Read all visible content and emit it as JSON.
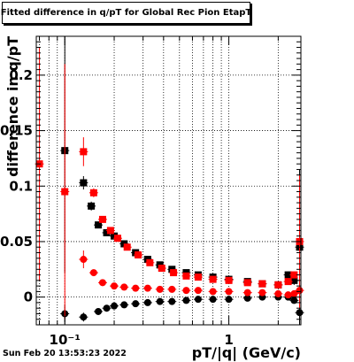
{
  "title": "Fitted difference in q/pT for Global Rec Pion EtapT",
  "footer": {
    "date": "Sun Feb 20 13:53:23 2022"
  },
  "chart_data": {
    "type": "scatter",
    "xlabel": "pT/|q| (GeV/c)",
    "ylabel": "difference in q/pT",
    "x_scale": "log",
    "xlim": [
      0.067,
      2.75
    ],
    "ylim": [
      -0.025,
      0.235
    ],
    "grid": true,
    "x_tick_labels": [
      {
        "value": 0.1,
        "label": "10⁻¹"
      },
      {
        "value": 1,
        "label": "1"
      }
    ],
    "y_tick_labels": [
      {
        "value": 0,
        "label": "0"
      },
      {
        "value": 0.05,
        "label": "0.05"
      },
      {
        "value": 0.1,
        "label": "0.1"
      },
      {
        "value": 0.15,
        "label": "0.15"
      },
      {
        "value": 0.2,
        "label": "0.2"
      }
    ],
    "series": [
      {
        "color": "#000000",
        "marker": "square",
        "x": [
          0.1,
          0.13,
          0.145,
          0.16,
          0.18,
          0.2,
          0.23,
          0.27,
          0.32,
          0.38,
          0.45,
          0.55,
          0.65,
          0.8,
          1.0,
          1.3,
          1.6,
          2.0,
          2.3,
          2.5,
          2.7
        ],
        "y": [
          0.132,
          0.103,
          0.082,
          0.065,
          0.058,
          0.055,
          0.048,
          0.04,
          0.034,
          0.029,
          0.025,
          0.022,
          0.02,
          0.018,
          0.016,
          0.014,
          0.012,
          0.011,
          0.02,
          0.015,
          0.045
        ],
        "yerr": [
          0.11,
          0.006,
          0.004,
          0.003,
          0.002,
          0.002,
          0.002,
          0.001,
          0.001,
          0.001,
          0.001,
          0.001,
          0.001,
          0.001,
          0.001,
          0.001,
          0.001,
          0.002,
          0.003,
          0.004,
          0.07
        ]
      },
      {
        "color": "#000000",
        "marker": "circle",
        "x": [
          0.1,
          0.13,
          0.16,
          0.18,
          0.2,
          0.23,
          0.27,
          0.32,
          0.38,
          0.45,
          0.55,
          0.65,
          0.8,
          1.0,
          1.3,
          1.6,
          2.0,
          2.3,
          2.5,
          2.7
        ],
        "y": [
          -0.015,
          -0.018,
          -0.013,
          -0.01,
          -0.008,
          -0.007,
          -0.006,
          -0.005,
          -0.004,
          -0.004,
          -0.003,
          -0.002,
          -0.002,
          -0.002,
          -0.001,
          0.0,
          0.0,
          0.0,
          -0.003,
          -0.014
        ],
        "yerr": [
          0.008,
          0.004,
          0.003,
          0.002,
          0.002,
          0.001,
          0.001,
          0.001,
          0.001,
          0.001,
          0.001,
          0.001,
          0.001,
          0.001,
          0.001,
          0.001,
          0.001,
          0.001,
          0.002,
          0.02
        ]
      },
      {
        "color": "#ff0000",
        "marker": "square",
        "x": [
          0.07,
          0.1,
          0.13,
          0.15,
          0.17,
          0.19,
          0.21,
          0.24,
          0.28,
          0.33,
          0.39,
          0.46,
          0.55,
          0.65,
          0.8,
          1.0,
          1.3,
          1.6,
          2.0,
          2.3,
          2.5,
          2.7
        ],
        "y": [
          0.12,
          0.095,
          0.131,
          0.094,
          0.07,
          0.06,
          0.053,
          0.045,
          0.038,
          0.031,
          0.026,
          0.022,
          0.019,
          0.018,
          0.016,
          0.015,
          0.013,
          0.012,
          0.011,
          0.014,
          0.02,
          0.05
        ],
        "yerr": [
          0.105,
          0.115,
          0.013,
          0.004,
          0.003,
          0.002,
          0.002,
          0.001,
          0.001,
          0.001,
          0.001,
          0.001,
          0.001,
          0.001,
          0.001,
          0.001,
          0.001,
          0.001,
          0.001,
          0.002,
          0.003,
          0.06
        ]
      },
      {
        "color": "#ff0000",
        "marker": "circle",
        "x": [
          0.13,
          0.15,
          0.17,
          0.2,
          0.23,
          0.27,
          0.32,
          0.38,
          0.45,
          0.55,
          0.65,
          0.8,
          1.0,
          1.3,
          1.6,
          2.0,
          2.3,
          2.5,
          2.7
        ],
        "y": [
          0.034,
          0.022,
          0.013,
          0.01,
          0.009,
          0.008,
          0.008,
          0.007,
          0.007,
          0.006,
          0.006,
          0.005,
          0.005,
          0.004,
          0.004,
          0.003,
          0.002,
          0.003,
          0.006
        ],
        "yerr": [
          0.008,
          0.003,
          0.002,
          0.002,
          0.001,
          0.001,
          0.001,
          0.001,
          0.001,
          0.001,
          0.001,
          0.001,
          0.001,
          0.001,
          0.001,
          0.001,
          0.001,
          0.002,
          0.004
        ]
      }
    ]
  }
}
